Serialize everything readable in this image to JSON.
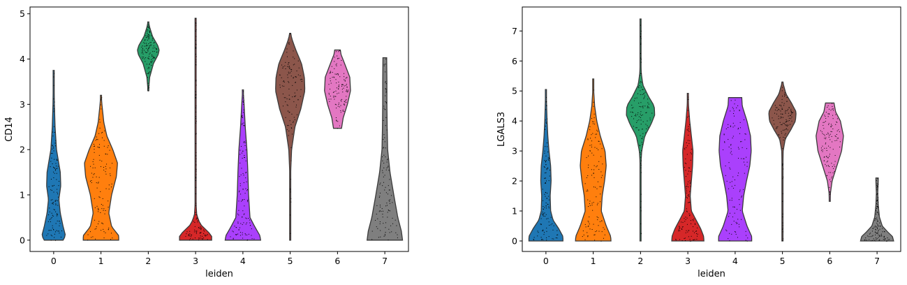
{
  "chart_data": [
    {
      "type": "violin",
      "xlabel": "leiden",
      "ylabel": "CD14",
      "ylim": [
        -0.25,
        5.15
      ],
      "yticks": [
        0,
        1,
        2,
        3,
        4,
        5
      ],
      "categories": [
        "0",
        "1",
        "2",
        "3",
        "4",
        "5",
        "6",
        "7"
      ],
      "colors": [
        "#1f77b4",
        "#ff7f0e",
        "#279e68",
        "#d62728",
        "#aa40fc",
        "#8c564b",
        "#e377c2",
        "#7f7f7f"
      ],
      "violins": [
        {
          "category": "0",
          "min": 0.0,
          "max": 3.75,
          "profile": [
            [
              0.0,
              0.4
            ],
            [
              0.1,
              0.5
            ],
            [
              0.3,
              0.4
            ],
            [
              0.6,
              0.28
            ],
            [
              0.9,
              0.22
            ],
            [
              1.2,
              0.3
            ],
            [
              1.5,
              0.28
            ],
            [
              2.0,
              0.12
            ],
            [
              2.5,
              0.06
            ],
            [
              3.0,
              0.03
            ],
            [
              3.75,
              0.01
            ]
          ]
        },
        {
          "category": "1",
          "min": 0.0,
          "max": 3.2,
          "profile": [
            [
              0.0,
              0.75
            ],
            [
              0.1,
              0.75
            ],
            [
              0.3,
              0.45
            ],
            [
              0.6,
              0.33
            ],
            [
              1.0,
              0.45
            ],
            [
              1.4,
              0.65
            ],
            [
              1.7,
              0.7
            ],
            [
              2.0,
              0.5
            ],
            [
              2.3,
              0.25
            ],
            [
              2.6,
              0.12
            ],
            [
              3.0,
              0.04
            ],
            [
              3.2,
              0.01
            ]
          ]
        },
        {
          "category": "2",
          "min": 3.3,
          "max": 4.82,
          "profile": [
            [
              3.3,
              0.01
            ],
            [
              3.6,
              0.06
            ],
            [
              3.9,
              0.22
            ],
            [
              4.1,
              0.42
            ],
            [
              4.2,
              0.46
            ],
            [
              4.3,
              0.4
            ],
            [
              4.5,
              0.18
            ],
            [
              4.7,
              0.06
            ],
            [
              4.82,
              0.01
            ]
          ]
        },
        {
          "category": "3",
          "min": 0.0,
          "max": 4.9,
          "profile": [
            [
              0.0,
              0.68
            ],
            [
              0.1,
              0.68
            ],
            [
              0.2,
              0.5
            ],
            [
              0.35,
              0.2
            ],
            [
              0.55,
              0.05
            ],
            [
              0.8,
              0.02
            ],
            [
              1.5,
              0.01
            ],
            [
              4.9,
              0.01
            ]
          ]
        },
        {
          "category": "4",
          "min": 0.0,
          "max": 3.32,
          "profile": [
            [
              0.0,
              0.75
            ],
            [
              0.1,
              0.72
            ],
            [
              0.3,
              0.5
            ],
            [
              0.5,
              0.3
            ],
            [
              1.0,
              0.24
            ],
            [
              1.5,
              0.21
            ],
            [
              2.0,
              0.17
            ],
            [
              2.5,
              0.1
            ],
            [
              3.0,
              0.05
            ],
            [
              3.32,
              0.01
            ]
          ]
        },
        {
          "category": "5",
          "min": 0.0,
          "max": 4.57,
          "profile": [
            [
              0.0,
              0.01
            ],
            [
              1.5,
              0.02
            ],
            [
              2.0,
              0.06
            ],
            [
              2.5,
              0.2
            ],
            [
              2.9,
              0.45
            ],
            [
              3.3,
              0.62
            ],
            [
              3.6,
              0.6
            ],
            [
              3.9,
              0.48
            ],
            [
              4.2,
              0.24
            ],
            [
              4.4,
              0.1
            ],
            [
              4.57,
              0.01
            ]
          ]
        },
        {
          "category": "6",
          "min": 2.47,
          "max": 4.2,
          "profile": [
            [
              2.47,
              0.17
            ],
            [
              2.7,
              0.24
            ],
            [
              3.0,
              0.42
            ],
            [
              3.3,
              0.55
            ],
            [
              3.6,
              0.52
            ],
            [
              3.9,
              0.3
            ],
            [
              4.1,
              0.15
            ],
            [
              4.2,
              0.12
            ]
          ]
        },
        {
          "category": "7",
          "min": 0.0,
          "max": 4.03,
          "profile": [
            [
              0.0,
              0.75
            ],
            [
              0.2,
              0.7
            ],
            [
              0.5,
              0.55
            ],
            [
              1.0,
              0.38
            ],
            [
              1.5,
              0.22
            ],
            [
              2.0,
              0.12
            ],
            [
              2.5,
              0.1
            ],
            [
              3.0,
              0.09
            ],
            [
              3.5,
              0.09
            ],
            [
              4.0,
              0.08
            ],
            [
              4.03,
              0.08
            ]
          ]
        }
      ]
    },
    {
      "type": "violin",
      "xlabel": "leiden",
      "ylabel": "LGALS3",
      "ylim": [
        -0.35,
        7.8
      ],
      "yticks": [
        0,
        1,
        2,
        3,
        4,
        5,
        6,
        7
      ],
      "categories": [
        "0",
        "1",
        "2",
        "3",
        "4",
        "5",
        "6",
        "7"
      ],
      "colors": [
        "#1f77b4",
        "#ff7f0e",
        "#279e68",
        "#d62728",
        "#aa40fc",
        "#8c564b",
        "#e377c2",
        "#7f7f7f"
      ],
      "violins": [
        {
          "category": "0",
          "min": 0.0,
          "max": 5.05,
          "profile": [
            [
              0.0,
              0.72
            ],
            [
              0.15,
              0.72
            ],
            [
              0.4,
              0.55
            ],
            [
              0.7,
              0.3
            ],
            [
              1.0,
              0.2
            ],
            [
              1.5,
              0.18
            ],
            [
              2.0,
              0.22
            ],
            [
              2.5,
              0.2
            ],
            [
              3.0,
              0.13
            ],
            [
              3.5,
              0.08
            ],
            [
              4.0,
              0.05
            ],
            [
              4.5,
              0.03
            ],
            [
              5.05,
              0.01
            ]
          ]
        },
        {
          "category": "1",
          "min": 0.0,
          "max": 5.4,
          "profile": [
            [
              0.0,
              0.75
            ],
            [
              0.15,
              0.74
            ],
            [
              0.5,
              0.55
            ],
            [
              1.0,
              0.34
            ],
            [
              1.5,
              0.38
            ],
            [
              2.0,
              0.48
            ],
            [
              2.5,
              0.55
            ],
            [
              3.0,
              0.5
            ],
            [
              3.5,
              0.3
            ],
            [
              4.0,
              0.15
            ],
            [
              4.5,
              0.06
            ],
            [
              5.0,
              0.02
            ],
            [
              5.4,
              0.01
            ]
          ]
        },
        {
          "category": "2",
          "min": 0.0,
          "max": 7.4,
          "profile": [
            [
              0.0,
              0.01
            ],
            [
              2.5,
              0.01
            ],
            [
              3.0,
              0.05
            ],
            [
              3.5,
              0.18
            ],
            [
              3.9,
              0.45
            ],
            [
              4.2,
              0.6
            ],
            [
              4.5,
              0.58
            ],
            [
              4.8,
              0.35
            ],
            [
              5.2,
              0.1
            ],
            [
              5.6,
              0.03
            ],
            [
              6.2,
              0.01
            ],
            [
              7.4,
              0.01
            ]
          ]
        },
        {
          "category": "3",
          "min": 0.0,
          "max": 4.92,
          "profile": [
            [
              0.0,
              0.68
            ],
            [
              0.15,
              0.67
            ],
            [
              0.4,
              0.55
            ],
            [
              0.7,
              0.35
            ],
            [
              1.0,
              0.15
            ],
            [
              1.5,
              0.1
            ],
            [
              2.0,
              0.15
            ],
            [
              2.5,
              0.2
            ],
            [
              3.0,
              0.22
            ],
            [
              3.5,
              0.15
            ],
            [
              4.0,
              0.08
            ],
            [
              4.5,
              0.03
            ],
            [
              4.92,
              0.01
            ]
          ]
        },
        {
          "category": "4",
          "min": 0.0,
          "max": 4.78,
          "profile": [
            [
              0.0,
              0.7
            ],
            [
              0.15,
              0.7
            ],
            [
              0.5,
              0.5
            ],
            [
              1.0,
              0.3
            ],
            [
              1.5,
              0.36
            ],
            [
              2.0,
              0.48
            ],
            [
              2.5,
              0.62
            ],
            [
              3.0,
              0.68
            ],
            [
              3.5,
              0.65
            ],
            [
              4.0,
              0.5
            ],
            [
              4.5,
              0.3
            ],
            [
              4.78,
              0.28
            ]
          ]
        },
        {
          "category": "5",
          "min": 0.0,
          "max": 5.3,
          "profile": [
            [
              0.0,
              0.01
            ],
            [
              2.0,
              0.01
            ],
            [
              3.0,
              0.03
            ],
            [
              3.4,
              0.12
            ],
            [
              3.7,
              0.35
            ],
            [
              4.0,
              0.55
            ],
            [
              4.3,
              0.58
            ],
            [
              4.6,
              0.38
            ],
            [
              4.9,
              0.15
            ],
            [
              5.3,
              0.01
            ]
          ]
        },
        {
          "category": "6",
          "min": 1.32,
          "max": 4.6,
          "profile": [
            [
              1.32,
              0.02
            ],
            [
              1.6,
              0.03
            ],
            [
              2.0,
              0.1
            ],
            [
              2.5,
              0.3
            ],
            [
              3.0,
              0.5
            ],
            [
              3.5,
              0.58
            ],
            [
              4.0,
              0.45
            ],
            [
              4.3,
              0.25
            ],
            [
              4.6,
              0.18
            ]
          ]
        },
        {
          "category": "7",
          "min": 0.0,
          "max": 2.1,
          "profile": [
            [
              0.0,
              0.7
            ],
            [
              0.15,
              0.65
            ],
            [
              0.3,
              0.45
            ],
            [
              0.5,
              0.22
            ],
            [
              0.8,
              0.1
            ],
            [
              1.2,
              0.05
            ],
            [
              1.6,
              0.03
            ],
            [
              2.0,
              0.05
            ],
            [
              2.1,
              0.05
            ]
          ]
        }
      ]
    }
  ]
}
